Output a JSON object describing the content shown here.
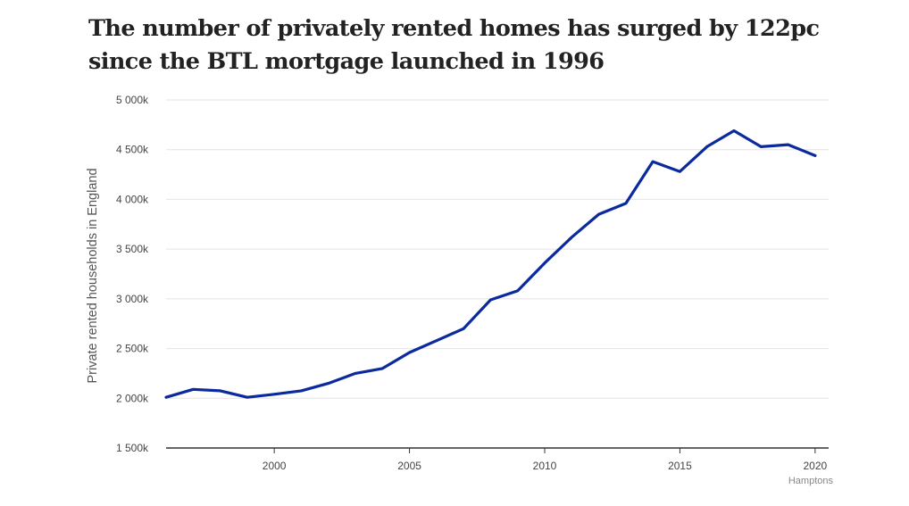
{
  "title": {
    "line1": "The number of privately rented homes has surged by 122pc",
    "line2": "since the BTL mortgage launched in 1996"
  },
  "source": "Hamptons",
  "colors": {
    "line": "#0a2a9e",
    "grid": "#e4e4e4",
    "axis": "#333333"
  },
  "chart_data": {
    "type": "line",
    "title": "The number of privately rented homes has surged by 122pc since the BTL mortgage launched in 1996",
    "xlabel": "",
    "ylabel": "Private rented households in England",
    "xlim": [
      1996,
      2020.5
    ],
    "ylim": [
      1500,
      5000
    ],
    "y_ticks": [
      1500,
      2000,
      2500,
      3000,
      3500,
      4000,
      4500,
      5000
    ],
    "y_tick_labels": [
      "1 500k",
      "2 000k",
      "2 500k",
      "3 000k",
      "3 500k",
      "4 000k",
      "4 500k",
      "5 000k"
    ],
    "x_ticks": [
      2000,
      2005,
      2010,
      2015,
      2020
    ],
    "x_tick_labels": [
      "2000",
      "2005",
      "2010",
      "2015",
      "2020"
    ],
    "grid": true,
    "series": [
      {
        "name": "Private rented households in England",
        "x": [
          1996,
          1997,
          1998,
          1999,
          2000,
          2001,
          2002,
          2003,
          2004,
          2005,
          2006,
          2007,
          2008,
          2009,
          2010,
          2011,
          2012,
          2013,
          2014,
          2015,
          2016,
          2017,
          2018,
          2019,
          2020
        ],
        "values": [
          2010,
          2090,
          2075,
          2010,
          2040,
          2075,
          2150,
          2250,
          2300,
          2460,
          2580,
          2700,
          2990,
          3080,
          3360,
          3620,
          3850,
          3960,
          4380,
          4280,
          4530,
          4690,
          4530,
          4550,
          4440
        ]
      }
    ]
  }
}
